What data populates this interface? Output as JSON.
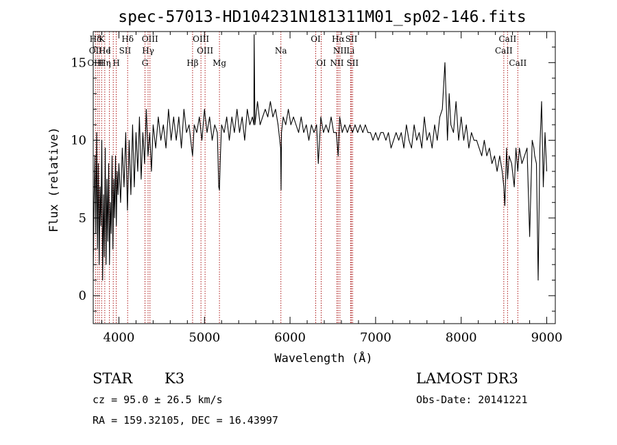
{
  "chart_data": {
    "type": "line",
    "title": "spec-57013-HD104231N181311M01_sp02-146.fits",
    "xlabel": "Wavelength (Å)",
    "ylabel": "Flux (relative)",
    "xlim": [
      3700,
      9100
    ],
    "ylim": [
      -1.8,
      17
    ],
    "xticks": [
      4000,
      5000,
      6000,
      7000,
      8000,
      9000
    ],
    "yticks": [
      0,
      5,
      10,
      15
    ],
    "series": [
      {
        "name": "flux",
        "x": [
          3700,
          3710,
          3720,
          3730,
          3740,
          3750,
          3760,
          3770,
          3780,
          3790,
          3800,
          3810,
          3820,
          3830,
          3840,
          3850,
          3860,
          3870,
          3880,
          3890,
          3900,
          3910,
          3920,
          3930,
          3940,
          3950,
          3960,
          3970,
          3980,
          3990,
          4000,
          4020,
          4040,
          4060,
          4080,
          4100,
          4120,
          4140,
          4160,
          4180,
          4200,
          4220,
          4240,
          4260,
          4280,
          4300,
          4320,
          4340,
          4360,
          4380,
          4400,
          4430,
          4460,
          4490,
          4520,
          4550,
          4580,
          4610,
          4640,
          4670,
          4700,
          4730,
          4760,
          4790,
          4820,
          4850,
          4861,
          4880,
          4910,
          4940,
          4970,
          5000,
          5030,
          5060,
          5090,
          5120,
          5150,
          5167,
          5175,
          5183,
          5200,
          5230,
          5260,
          5290,
          5320,
          5350,
          5380,
          5410,
          5440,
          5470,
          5500,
          5530,
          5560,
          5577,
          5580,
          5590,
          5620,
          5650,
          5680,
          5710,
          5740,
          5770,
          5800,
          5830,
          5860,
          5890,
          5895,
          5900,
          5920,
          5950,
          5980,
          6010,
          6040,
          6070,
          6100,
          6130,
          6160,
          6190,
          6220,
          6250,
          6280,
          6310,
          6330,
          6360,
          6390,
          6420,
          6450,
          6480,
          6510,
          6540,
          6563,
          6580,
          6610,
          6640,
          6670,
          6700,
          6730,
          6760,
          6790,
          6820,
          6850,
          6880,
          6910,
          6940,
          6970,
          7000,
          7030,
          7060,
          7090,
          7120,
          7150,
          7180,
          7210,
          7240,
          7270,
          7300,
          7330,
          7360,
          7390,
          7420,
          7450,
          7480,
          7510,
          7540,
          7570,
          7600,
          7630,
          7660,
          7690,
          7720,
          7750,
          7780,
          7810,
          7840,
          7860,
          7880,
          7910,
          7940,
          7970,
          8000,
          8030,
          8060,
          8090,
          8120,
          8150,
          8180,
          8210,
          8240,
          8270,
          8300,
          8330,
          8360,
          8390,
          8420,
          8450,
          8480,
          8498,
          8510,
          8530,
          8542,
          8560,
          8590,
          8620,
          8640,
          8662,
          8680,
          8710,
          8740,
          8770,
          8800,
          8830,
          8850,
          8860,
          8880,
          8900,
          8920,
          8940,
          8960,
          8980,
          9000
        ],
        "values": [
          1.5,
          6.0,
          9.0,
          4.0,
          10.5,
          3.0,
          8.5,
          2.0,
          7.0,
          4.5,
          10.0,
          1.0,
          6.5,
          2.5,
          9.5,
          2.0,
          7.5,
          3.5,
          8.5,
          2.0,
          6.0,
          4.0,
          9.0,
          3.0,
          7.5,
          5.0,
          9.0,
          4.5,
          8.0,
          6.5,
          8.5,
          6.0,
          9.5,
          7.0,
          10.5,
          5.5,
          10.0,
          6.5,
          11.0,
          7.0,
          10.5,
          8.0,
          11.5,
          7.5,
          10.5,
          8.5,
          12.0,
          9.0,
          10.5,
          8.0,
          11.0,
          9.5,
          11.5,
          10.0,
          11.0,
          9.5,
          12.0,
          10.0,
          11.5,
          10.0,
          11.5,
          9.5,
          12.0,
          10.5,
          11.0,
          9.5,
          9.0,
          11.0,
          10.5,
          11.5,
          10.0,
          12.0,
          10.5,
          11.5,
          10.0,
          11.0,
          10.5,
          7.0,
          6.8,
          8.5,
          11.0,
          10.5,
          11.5,
          10.0,
          11.5,
          10.5,
          12.0,
          10.5,
          11.5,
          10.0,
          12.0,
          11.0,
          11.5,
          11.0,
          16.8,
          11.0,
          12.5,
          11.0,
          11.5,
          12.0,
          11.5,
          12.5,
          11.5,
          12.0,
          11.0,
          9.5,
          6.8,
          10.5,
          11.5,
          11.0,
          12.0,
          11.0,
          11.5,
          11.0,
          10.5,
          11.5,
          10.5,
          11.0,
          10.0,
          11.0,
          10.5,
          11.0,
          8.5,
          11.5,
          10.5,
          11.0,
          10.5,
          11.5,
          10.5,
          10.5,
          9.0,
          11.5,
          10.5,
          11.0,
          10.5,
          11.0,
          10.5,
          11.0,
          10.5,
          11.0,
          10.5,
          11.0,
          10.5,
          10.5,
          10.0,
          10.5,
          10.0,
          10.5,
          10.5,
          10.0,
          10.5,
          9.5,
          10.0,
          10.5,
          10.0,
          10.5,
          9.5,
          11.0,
          10.0,
          9.5,
          11.0,
          10.0,
          10.5,
          9.5,
          11.5,
          10.0,
          10.5,
          9.5,
          11.0,
          10.0,
          11.5,
          12.0,
          15.0,
          10.0,
          13.0,
          11.0,
          10.5,
          12.5,
          10.0,
          11.5,
          10.0,
          11.0,
          9.5,
          10.5,
          10.0,
          10.0,
          9.5,
          9.0,
          10.0,
          9.0,
          9.5,
          8.5,
          9.0,
          8.0,
          9.0,
          8.0,
          7.0,
          5.8,
          9.5,
          7.5,
          9.0,
          8.5,
          7.0,
          9.5,
          8.0,
          9.5,
          8.5,
          9.0,
          9.5,
          3.8,
          10.0,
          9.5,
          9.0,
          8.5,
          1.0,
          9.5,
          12.5,
          7.0,
          10.5,
          8.0
        ]
      }
    ],
    "spectral_lines": [
      {
        "label": "Hδ",
        "x": 3728,
        "row": 0
      },
      {
        "label": "K",
        "x": 3800,
        "row": 0
      },
      {
        "label": "Hδ",
        "x": 4102,
        "row": 0
      },
      {
        "label": "OIII",
        "x": 4363,
        "row": 0
      },
      {
        "label": "OIII",
        "x": 4959,
        "row": 0
      },
      {
        "label": "OI",
        "x": 6300,
        "row": 0
      },
      {
        "label": "Hα",
        "x": 6563,
        "row": 0
      },
      {
        "label": "SII",
        "x": 6717,
        "row": 0
      },
      {
        "label": "CaII",
        "x": 8542,
        "row": 0
      },
      {
        "label": "OII",
        "x": 3727,
        "row": 1
      },
      {
        "label": "He",
        "x": 3834,
        "row": 1
      },
      {
        "label": "I",
        "x": 3889,
        "row": 1
      },
      {
        "label": "SII",
        "x": 4072,
        "row": 1
      },
      {
        "label": "Hγ",
        "x": 4341,
        "row": 1
      },
      {
        "label": "OIII",
        "x": 5007,
        "row": 1
      },
      {
        "label": "Na",
        "x": 5893,
        "row": 1
      },
      {
        "label": "NII",
        "x": 6583,
        "row": 1
      },
      {
        "label": "Li",
        "x": 6707,
        "row": 1
      },
      {
        "label": "CaII",
        "x": 8498,
        "row": 1
      },
      {
        "label": "OIII",
        "x": 3727,
        "row": 2
      },
      {
        "label": "Hη",
        "x": 3835,
        "row": 2
      },
      {
        "label": "H",
        "x": 3969,
        "row": 2
      },
      {
        "label": "G",
        "x": 4305,
        "row": 2
      },
      {
        "label": "Hβ",
        "x": 4861,
        "row": 2
      },
      {
        "label": "Mg",
        "x": 5175,
        "row": 2
      },
      {
        "label": "OI",
        "x": 6364,
        "row": 2
      },
      {
        "label": "NII",
        "x": 6548,
        "row": 2
      },
      {
        "label": "SII",
        "x": 6731,
        "row": 2
      },
      {
        "label": "CaII",
        "x": 8662,
        "row": 2
      }
    ],
    "line_positions": [
      3727,
      3750,
      3771,
      3798,
      3835,
      3889,
      3934,
      3969,
      4102,
      4305,
      4341,
      4363,
      4861,
      4959,
      5007,
      5175,
      5893,
      6300,
      6364,
      6548,
      6563,
      6583,
      6707,
      6717,
      6731,
      8498,
      8542,
      8662
    ],
    "grid": false
  },
  "info": {
    "object_type": "STAR",
    "subclass": "K3",
    "survey": "LAMOST DR3",
    "cz": "cz = 95.0 ± 26.5 km/s",
    "obs_date": "Obs-Date: 20141221",
    "radec": "RA = 159.32105, DEC =  16.43997"
  },
  "colors": {
    "line_marker": "#aa1111",
    "spectrum": "#000000",
    "axis": "#000000",
    "background": "#ffffff"
  }
}
